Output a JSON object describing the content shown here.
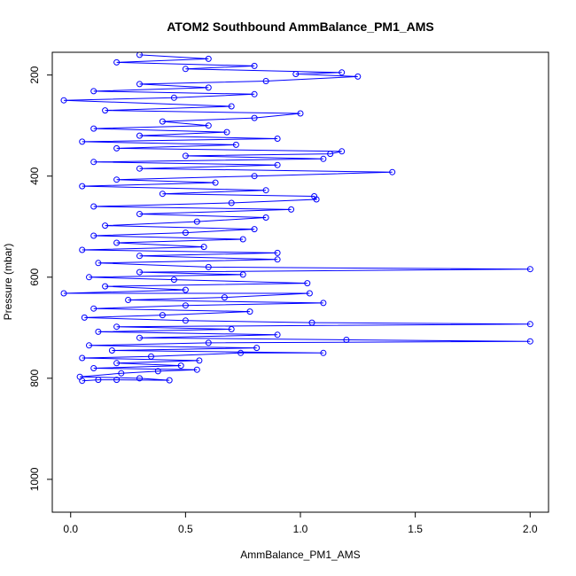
{
  "chart_data": {
    "type": "scatter",
    "title": "ATOM2 Southbound AmmBalance_PM1_AMS",
    "xlabel": "AmmBalance_PM1_AMS",
    "ylabel": "Pressure (mbar)",
    "xlim": [
      -0.08,
      2.08
    ],
    "ylim": [
      1065,
      155
    ],
    "y_reversed": true,
    "x_ticks": [
      {
        "value": 0.0,
        "label": "0.0"
      },
      {
        "value": 0.5,
        "label": "0.5"
      },
      {
        "value": 1.0,
        "label": "1.0"
      },
      {
        "value": 1.5,
        "label": "1.5"
      },
      {
        "value": 2.0,
        "label": "2.0"
      }
    ],
    "y_ticks": [
      {
        "value": 200,
        "label": "200"
      },
      {
        "value": 400,
        "label": "400"
      },
      {
        "value": 600,
        "label": "600"
      },
      {
        "value": 800,
        "label": "800"
      },
      {
        "value": 1000,
        "label": "1000"
      }
    ],
    "grid": false,
    "legend": "none",
    "series_color": "#0000ff",
    "marker": "open-circle",
    "connected_line": true,
    "series": [
      {
        "points": [
          {
            "x": 0.05,
            "y": 805
          },
          {
            "x": 0.12,
            "y": 803
          },
          {
            "x": 0.2,
            "y": 803
          },
          {
            "x": 0.43,
            "y": 804
          },
          {
            "x": 0.3,
            "y": 800
          },
          {
            "x": 0.04,
            "y": 797
          },
          {
            "x": 0.22,
            "y": 790
          },
          {
            "x": 0.38,
            "y": 786
          },
          {
            "x": 0.55,
            "y": 783
          },
          {
            "x": 0.1,
            "y": 780
          },
          {
            "x": 0.48,
            "y": 775
          },
          {
            "x": 0.2,
            "y": 770
          },
          {
            "x": 0.56,
            "y": 765
          },
          {
            "x": 0.05,
            "y": 760
          },
          {
            "x": 0.35,
            "y": 757
          },
          {
            "x": 0.74,
            "y": 750
          },
          {
            "x": 1.1,
            "y": 750
          },
          {
            "x": 0.18,
            "y": 745
          },
          {
            "x": 0.81,
            "y": 740
          },
          {
            "x": 0.08,
            "y": 735
          },
          {
            "x": 0.6,
            "y": 730
          },
          {
            "x": 2.0,
            "y": 727
          },
          {
            "x": 1.2,
            "y": 724
          },
          {
            "x": 0.3,
            "y": 720
          },
          {
            "x": 0.9,
            "y": 714
          },
          {
            "x": 0.12,
            "y": 708
          },
          {
            "x": 0.7,
            "y": 703
          },
          {
            "x": 0.2,
            "y": 698
          },
          {
            "x": 2.0,
            "y": 693
          },
          {
            "x": 1.05,
            "y": 690
          },
          {
            "x": 0.5,
            "y": 686
          },
          {
            "x": 0.06,
            "y": 680
          },
          {
            "x": 0.4,
            "y": 675
          },
          {
            "x": 0.78,
            "y": 668
          },
          {
            "x": 0.1,
            "y": 662
          },
          {
            "x": 0.5,
            "y": 656
          },
          {
            "x": 1.1,
            "y": 651
          },
          {
            "x": 0.25,
            "y": 645
          },
          {
            "x": 0.67,
            "y": 640
          },
          {
            "x": 1.04,
            "y": 632
          },
          {
            "x": -0.03,
            "y": 632
          },
          {
            "x": 0.5,
            "y": 625
          },
          {
            "x": 0.15,
            "y": 618
          },
          {
            "x": 1.03,
            "y": 612
          },
          {
            "x": 0.45,
            "y": 605
          },
          {
            "x": 0.08,
            "y": 600
          },
          {
            "x": 0.75,
            "y": 595
          },
          {
            "x": 0.3,
            "y": 590
          },
          {
            "x": 2.0,
            "y": 584
          },
          {
            "x": 0.6,
            "y": 580
          },
          {
            "x": 0.12,
            "y": 572
          },
          {
            "x": 0.9,
            "y": 565
          },
          {
            "x": 0.3,
            "y": 558
          },
          {
            "x": 0.9,
            "y": 552
          },
          {
            "x": 0.05,
            "y": 546
          },
          {
            "x": 0.58,
            "y": 540
          },
          {
            "x": 0.2,
            "y": 532
          },
          {
            "x": 0.75,
            "y": 525
          },
          {
            "x": 0.1,
            "y": 518
          },
          {
            "x": 0.5,
            "y": 512
          },
          {
            "x": 0.8,
            "y": 505
          },
          {
            "x": 0.15,
            "y": 498
          },
          {
            "x": 0.55,
            "y": 490
          },
          {
            "x": 0.85,
            "y": 482
          },
          {
            "x": 0.3,
            "y": 475
          },
          {
            "x": 0.96,
            "y": 466
          },
          {
            "x": 0.1,
            "y": 460
          },
          {
            "x": 0.7,
            "y": 453
          },
          {
            "x": 1.07,
            "y": 446
          },
          {
            "x": 1.06,
            "y": 440
          },
          {
            "x": 0.4,
            "y": 435
          },
          {
            "x": 0.85,
            "y": 428
          },
          {
            "x": 0.05,
            "y": 420
          },
          {
            "x": 0.63,
            "y": 413
          },
          {
            "x": 0.2,
            "y": 407
          },
          {
            "x": 0.8,
            "y": 400
          },
          {
            "x": 1.4,
            "y": 392
          },
          {
            "x": 0.3,
            "y": 385
          },
          {
            "x": 0.9,
            "y": 378
          },
          {
            "x": 0.1,
            "y": 372
          },
          {
            "x": 1.1,
            "y": 366
          },
          {
            "x": 0.5,
            "y": 360
          },
          {
            "x": 1.13,
            "y": 356
          },
          {
            "x": 1.18,
            "y": 351
          },
          {
            "x": 0.2,
            "y": 345
          },
          {
            "x": 0.72,
            "y": 338
          },
          {
            "x": 0.05,
            "y": 332
          },
          {
            "x": 0.9,
            "y": 326
          },
          {
            "x": 0.3,
            "y": 320
          },
          {
            "x": 0.68,
            "y": 313
          },
          {
            "x": 0.1,
            "y": 306
          },
          {
            "x": 0.6,
            "y": 300
          },
          {
            "x": 0.4,
            "y": 292
          },
          {
            "x": 0.8,
            "y": 285
          },
          {
            "x": 1.0,
            "y": 276
          },
          {
            "x": 0.15,
            "y": 270
          },
          {
            "x": 0.7,
            "y": 262
          },
          {
            "x": -0.03,
            "y": 250
          },
          {
            "x": 0.45,
            "y": 245
          },
          {
            "x": 0.8,
            "y": 238
          },
          {
            "x": 0.1,
            "y": 232
          },
          {
            "x": 0.6,
            "y": 225
          },
          {
            "x": 0.3,
            "y": 218
          },
          {
            "x": 0.85,
            "y": 212
          },
          {
            "x": 1.25,
            "y": 203
          },
          {
            "x": 0.98,
            "y": 198
          },
          {
            "x": 1.18,
            "y": 195
          },
          {
            "x": 0.5,
            "y": 188
          },
          {
            "x": 0.8,
            "y": 182
          },
          {
            "x": 0.2,
            "y": 175
          },
          {
            "x": 0.6,
            "y": 168
          },
          {
            "x": 0.3,
            "y": 160
          }
        ]
      }
    ]
  }
}
